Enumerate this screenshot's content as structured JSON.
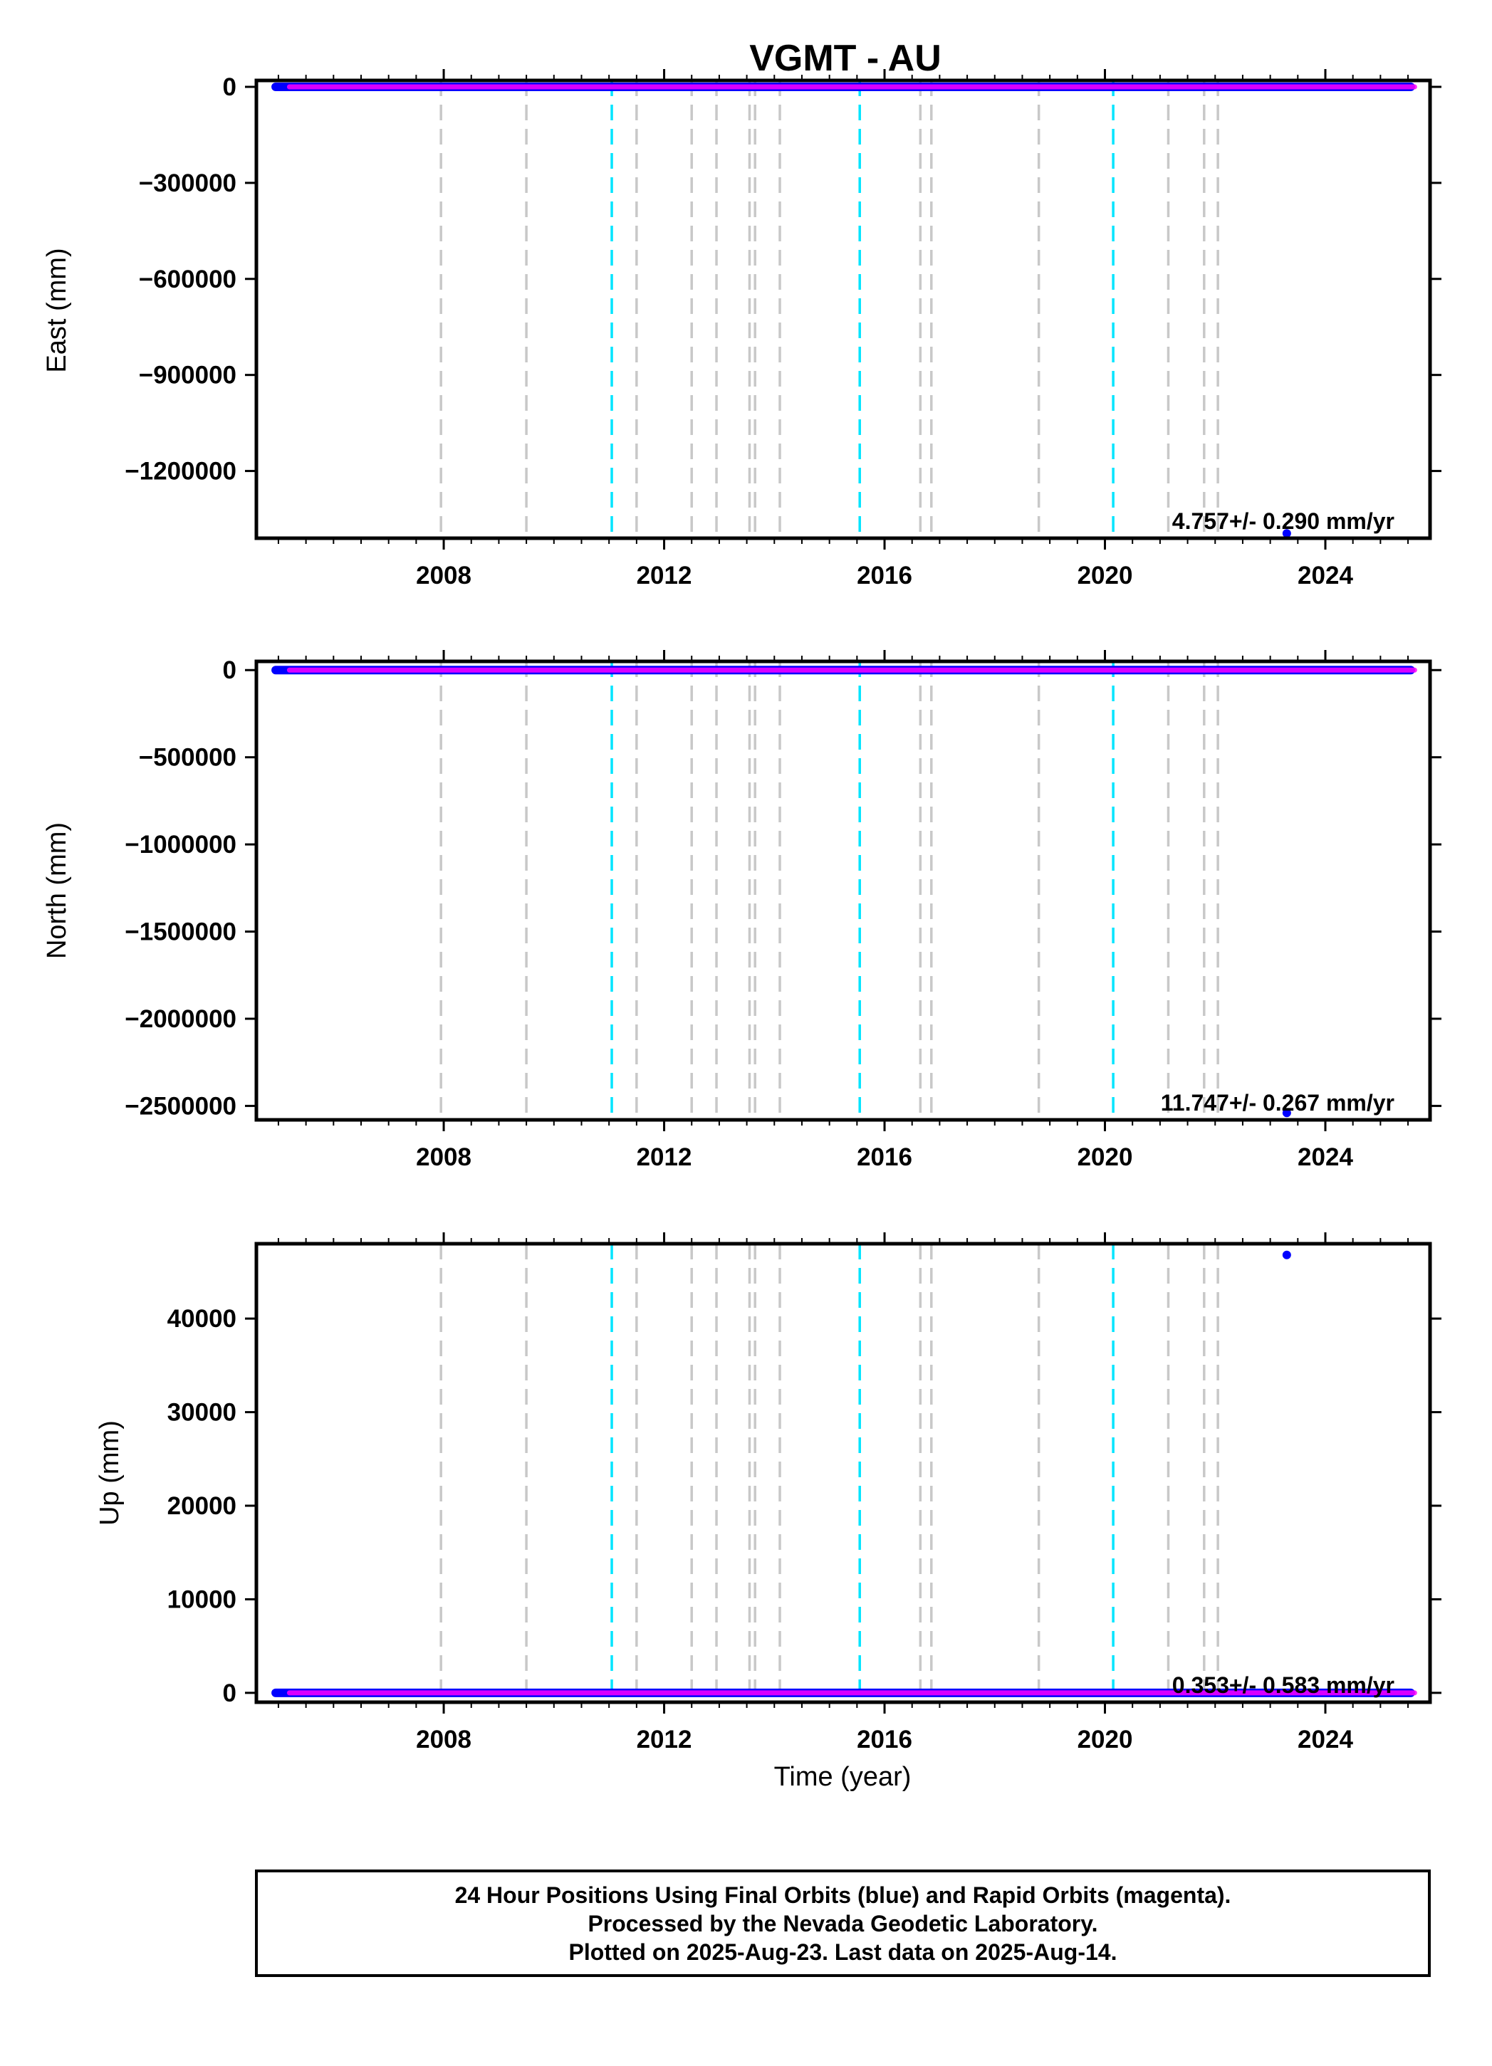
{
  "chart_data": {
    "type": "scatter",
    "title": "VGMT - AU",
    "xlabel": "Time (year)",
    "xlim": [
      2004.6,
      2025.9
    ],
    "x_ticks": [
      2008,
      2012,
      2016,
      2020,
      2024
    ],
    "x_ticks_minor_step": 0.5,
    "final_orbits_color": "#0000ff",
    "rapid_orbits_color": "#ff00ff",
    "gray_event_lines": [
      2007.95,
      2009.5,
      2011.5,
      2012.5,
      2012.95,
      2013.55,
      2013.65,
      2014.1,
      2016.65,
      2016.85,
      2018.8,
      2021.15,
      2021.8,
      2022.05
    ],
    "cyan_event_lines": [
      2011.05,
      2015.55,
      2020.15
    ],
    "gray_line_color": "#c8c8c8",
    "cyan_line_color": "#00e5ff",
    "panels": [
      {
        "ylabel": "East (mm)",
        "ylim": [
          -1410000,
          20000
        ],
        "y_ticks": [
          0,
          -300000,
          -600000,
          -900000,
          -1200000
        ],
        "y_tick_labels": [
          "0",
          "−300000",
          "−600000",
          "−900000",
          "−1200000"
        ],
        "rate_text": "4.757+/- 0.290 mm/yr",
        "final_orbits": {
          "x_start": 2004.95,
          "x_end": 2025.55,
          "y": 0
        },
        "rapid_orbits": {
          "x_start": 2005.2,
          "x_end": 2025.62,
          "y": 0
        },
        "outliers": [
          {
            "x": 2023.3,
            "y": -1395000
          }
        ]
      },
      {
        "ylabel": "North (mm)",
        "ylim": [
          -2580000,
          50000
        ],
        "y_ticks": [
          0,
          -500000,
          -1000000,
          -1500000,
          -2000000,
          -2500000
        ],
        "y_tick_labels": [
          "0",
          "−500000",
          "−1000000",
          "−1500000",
          "−2000000",
          "−2500000"
        ],
        "rate_text": "11.747+/- 0.267 mm/yr",
        "final_orbits": {
          "x_start": 2004.95,
          "x_end": 2025.55,
          "y": 0
        },
        "rapid_orbits": {
          "x_start": 2005.2,
          "x_end": 2025.62,
          "y": 0
        },
        "outliers": [
          {
            "x": 2023.3,
            "y": -2540000
          }
        ]
      },
      {
        "ylabel": "Up (mm)",
        "ylim": [
          -1000,
          48000
        ],
        "y_ticks": [
          0,
          10000,
          20000,
          30000,
          40000
        ],
        "y_tick_labels": [
          "0",
          "10000",
          "20000",
          "30000",
          "40000"
        ],
        "rate_text": "0.353+/- 0.583 mm/yr",
        "final_orbits": {
          "x_start": 2004.95,
          "x_end": 2025.55,
          "y": 0
        },
        "rapid_orbits": {
          "x_start": 2005.2,
          "x_end": 2025.62,
          "y": 0
        },
        "outliers": [
          {
            "x": 2023.3,
            "y": 46800
          }
        ]
      }
    ]
  },
  "footer": {
    "line1": "24 Hour Positions Using Final Orbits (blue) and Rapid Orbits (magenta).",
    "line2": "Processed by the Nevada Geodetic Laboratory.",
    "line3": "Plotted on 2025-Aug-23. Last data on 2025-Aug-14."
  }
}
